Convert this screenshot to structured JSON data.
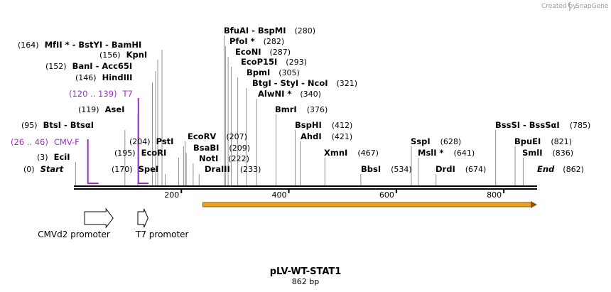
{
  "header": {
    "credit_text": "Created by",
    "brand": "SnapGene"
  },
  "map": {
    "name": "pLV-WT-STAT1",
    "length_label": "862 bp",
    "total_bp": 862,
    "ticks": [
      {
        "pos": 200,
        "label": "200"
      },
      {
        "pos": 400,
        "label": "400"
      },
      {
        "pos": 600,
        "label": "600"
      },
      {
        "pos": 800,
        "label": "800"
      }
    ],
    "ends": [
      {
        "pos": 0,
        "pos_label": "(0)",
        "name": "Start"
      },
      {
        "pos": 862,
        "pos_label": "(862)",
        "name": "End"
      }
    ],
    "sites": [
      {
        "pos": 3,
        "pos_label": "(3)",
        "names": "EciI"
      },
      {
        "pos": 95,
        "pos_label": "(95)",
        "names": "BtsI  -  BtsαI"
      },
      {
        "pos": 119,
        "pos_label": "(119)",
        "names": "AseI"
      },
      {
        "pos": 146,
        "pos_label": "(146)",
        "names": "HindIII"
      },
      {
        "pos": 152,
        "pos_label": "(152)",
        "names": "BanI  -  Acc65I"
      },
      {
        "pos": 156,
        "pos_label": "(156)",
        "names": "KpnI"
      },
      {
        "pos": 164,
        "pos_label": "(164)",
        "names": "MfII *  -  BstYI  -  BamHI"
      },
      {
        "pos": 170,
        "pos_label": "(170)",
        "names": "SpeI"
      },
      {
        "pos": 195,
        "pos_label": "(195)",
        "names": "EcoRI"
      },
      {
        "pos": 204,
        "pos_label": "(204)",
        "names": "PstI"
      },
      {
        "pos": 207,
        "pos_label": "(207)",
        "names": "EcoRV"
      },
      {
        "pos": 209,
        "pos_label": "(209)",
        "names": "BsaBI"
      },
      {
        "pos": 222,
        "pos_label": "(222)",
        "names": "NotI"
      },
      {
        "pos": 233,
        "pos_label": "(233)",
        "names": "DraIII"
      },
      {
        "pos": 280,
        "pos_label": "(280)",
        "names": "BfuAI  -  BspMI"
      },
      {
        "pos": 282,
        "pos_label": "(282)",
        "names": "PfoI *"
      },
      {
        "pos": 287,
        "pos_label": "(287)",
        "names": "EcoNI"
      },
      {
        "pos": 293,
        "pos_label": "(293)",
        "names": "EcoP15I"
      },
      {
        "pos": 305,
        "pos_label": "(305)",
        "names": "BpmI"
      },
      {
        "pos": 321,
        "pos_label": "(321)",
        "names": "BtgI  -  StyI  -  NcoI"
      },
      {
        "pos": 340,
        "pos_label": "(340)",
        "names": "AlwNI *"
      },
      {
        "pos": 376,
        "pos_label": "(376)",
        "names": "BmrI"
      },
      {
        "pos": 412,
        "pos_label": "(412)",
        "names": "BspHI"
      },
      {
        "pos": 421,
        "pos_label": "(421)",
        "names": "AhdI"
      },
      {
        "pos": 467,
        "pos_label": "(467)",
        "names": "XmnI"
      },
      {
        "pos": 534,
        "pos_label": "(534)",
        "names": "BbsI"
      },
      {
        "pos": 628,
        "pos_label": "(628)",
        "names": "SspI"
      },
      {
        "pos": 641,
        "pos_label": "(641)",
        "names": "MslI *"
      },
      {
        "pos": 674,
        "pos_label": "(674)",
        "names": "DrdI"
      },
      {
        "pos": 785,
        "pos_label": "(785)",
        "names": "BssSI  -  BssSαI"
      },
      {
        "pos": 821,
        "pos_label": "(821)",
        "names": "BpuEI"
      },
      {
        "pos": 836,
        "pos_label": "(836)",
        "names": "SmlI"
      }
    ],
    "primers": [
      {
        "start": 26,
        "end": 46,
        "range_label": "(26 .. 46)",
        "name": "CMV-F",
        "color": "#9b2fc9"
      },
      {
        "start": 120,
        "end": 139,
        "range_label": "(120 .. 139)",
        "name": "T7",
        "color": "#9b2fc9"
      }
    ],
    "features": [
      {
        "name": "CMVd2 promoter",
        "start": 20,
        "end": 73,
        "color": "#ffffff"
      },
      {
        "name": "T7 promoter",
        "start": 119,
        "end": 138,
        "color": "#ffffff"
      }
    ],
    "orf": {
      "start": 240,
      "end": 862,
      "color": "#f0a020"
    }
  }
}
